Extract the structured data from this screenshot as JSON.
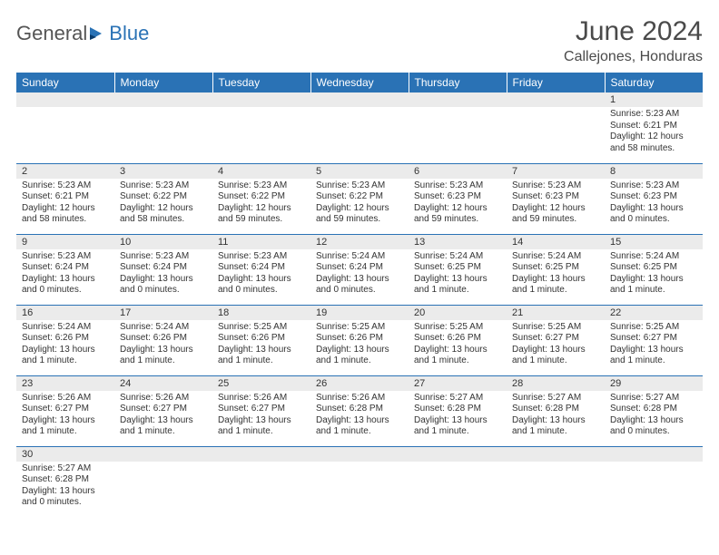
{
  "logo": {
    "text1": "General",
    "text2": "Blue"
  },
  "title": "June 2024",
  "location": "Callejones, Honduras",
  "colors": {
    "header_bg": "#2a72b5",
    "header_text": "#ffffff",
    "daynum_bg": "#ebebeb",
    "border": "#2a72b5"
  },
  "weekdays": [
    "Sunday",
    "Monday",
    "Tuesday",
    "Wednesday",
    "Thursday",
    "Friday",
    "Saturday"
  ],
  "weeks": [
    [
      null,
      null,
      null,
      null,
      null,
      null,
      {
        "d": "1",
        "sr": "Sunrise: 5:23 AM",
        "ss": "Sunset: 6:21 PM",
        "dl": "Daylight: 12 hours and 58 minutes."
      }
    ],
    [
      {
        "d": "2",
        "sr": "Sunrise: 5:23 AM",
        "ss": "Sunset: 6:21 PM",
        "dl": "Daylight: 12 hours and 58 minutes."
      },
      {
        "d": "3",
        "sr": "Sunrise: 5:23 AM",
        "ss": "Sunset: 6:22 PM",
        "dl": "Daylight: 12 hours and 58 minutes."
      },
      {
        "d": "4",
        "sr": "Sunrise: 5:23 AM",
        "ss": "Sunset: 6:22 PM",
        "dl": "Daylight: 12 hours and 59 minutes."
      },
      {
        "d": "5",
        "sr": "Sunrise: 5:23 AM",
        "ss": "Sunset: 6:22 PM",
        "dl": "Daylight: 12 hours and 59 minutes."
      },
      {
        "d": "6",
        "sr": "Sunrise: 5:23 AM",
        "ss": "Sunset: 6:23 PM",
        "dl": "Daylight: 12 hours and 59 minutes."
      },
      {
        "d": "7",
        "sr": "Sunrise: 5:23 AM",
        "ss": "Sunset: 6:23 PM",
        "dl": "Daylight: 12 hours and 59 minutes."
      },
      {
        "d": "8",
        "sr": "Sunrise: 5:23 AM",
        "ss": "Sunset: 6:23 PM",
        "dl": "Daylight: 13 hours and 0 minutes."
      }
    ],
    [
      {
        "d": "9",
        "sr": "Sunrise: 5:23 AM",
        "ss": "Sunset: 6:24 PM",
        "dl": "Daylight: 13 hours and 0 minutes."
      },
      {
        "d": "10",
        "sr": "Sunrise: 5:23 AM",
        "ss": "Sunset: 6:24 PM",
        "dl": "Daylight: 13 hours and 0 minutes."
      },
      {
        "d": "11",
        "sr": "Sunrise: 5:23 AM",
        "ss": "Sunset: 6:24 PM",
        "dl": "Daylight: 13 hours and 0 minutes."
      },
      {
        "d": "12",
        "sr": "Sunrise: 5:24 AM",
        "ss": "Sunset: 6:24 PM",
        "dl": "Daylight: 13 hours and 0 minutes."
      },
      {
        "d": "13",
        "sr": "Sunrise: 5:24 AM",
        "ss": "Sunset: 6:25 PM",
        "dl": "Daylight: 13 hours and 1 minute."
      },
      {
        "d": "14",
        "sr": "Sunrise: 5:24 AM",
        "ss": "Sunset: 6:25 PM",
        "dl": "Daylight: 13 hours and 1 minute."
      },
      {
        "d": "15",
        "sr": "Sunrise: 5:24 AM",
        "ss": "Sunset: 6:25 PM",
        "dl": "Daylight: 13 hours and 1 minute."
      }
    ],
    [
      {
        "d": "16",
        "sr": "Sunrise: 5:24 AM",
        "ss": "Sunset: 6:26 PM",
        "dl": "Daylight: 13 hours and 1 minute."
      },
      {
        "d": "17",
        "sr": "Sunrise: 5:24 AM",
        "ss": "Sunset: 6:26 PM",
        "dl": "Daylight: 13 hours and 1 minute."
      },
      {
        "d": "18",
        "sr": "Sunrise: 5:25 AM",
        "ss": "Sunset: 6:26 PM",
        "dl": "Daylight: 13 hours and 1 minute."
      },
      {
        "d": "19",
        "sr": "Sunrise: 5:25 AM",
        "ss": "Sunset: 6:26 PM",
        "dl": "Daylight: 13 hours and 1 minute."
      },
      {
        "d": "20",
        "sr": "Sunrise: 5:25 AM",
        "ss": "Sunset: 6:26 PM",
        "dl": "Daylight: 13 hours and 1 minute."
      },
      {
        "d": "21",
        "sr": "Sunrise: 5:25 AM",
        "ss": "Sunset: 6:27 PM",
        "dl": "Daylight: 13 hours and 1 minute."
      },
      {
        "d": "22",
        "sr": "Sunrise: 5:25 AM",
        "ss": "Sunset: 6:27 PM",
        "dl": "Daylight: 13 hours and 1 minute."
      }
    ],
    [
      {
        "d": "23",
        "sr": "Sunrise: 5:26 AM",
        "ss": "Sunset: 6:27 PM",
        "dl": "Daylight: 13 hours and 1 minute."
      },
      {
        "d": "24",
        "sr": "Sunrise: 5:26 AM",
        "ss": "Sunset: 6:27 PM",
        "dl": "Daylight: 13 hours and 1 minute."
      },
      {
        "d": "25",
        "sr": "Sunrise: 5:26 AM",
        "ss": "Sunset: 6:27 PM",
        "dl": "Daylight: 13 hours and 1 minute."
      },
      {
        "d": "26",
        "sr": "Sunrise: 5:26 AM",
        "ss": "Sunset: 6:28 PM",
        "dl": "Daylight: 13 hours and 1 minute."
      },
      {
        "d": "27",
        "sr": "Sunrise: 5:27 AM",
        "ss": "Sunset: 6:28 PM",
        "dl": "Daylight: 13 hours and 1 minute."
      },
      {
        "d": "28",
        "sr": "Sunrise: 5:27 AM",
        "ss": "Sunset: 6:28 PM",
        "dl": "Daylight: 13 hours and 1 minute."
      },
      {
        "d": "29",
        "sr": "Sunrise: 5:27 AM",
        "ss": "Sunset: 6:28 PM",
        "dl": "Daylight: 13 hours and 0 minutes."
      }
    ],
    [
      {
        "d": "30",
        "sr": "Sunrise: 5:27 AM",
        "ss": "Sunset: 6:28 PM",
        "dl": "Daylight: 13 hours and 0 minutes."
      },
      null,
      null,
      null,
      null,
      null,
      null
    ]
  ]
}
